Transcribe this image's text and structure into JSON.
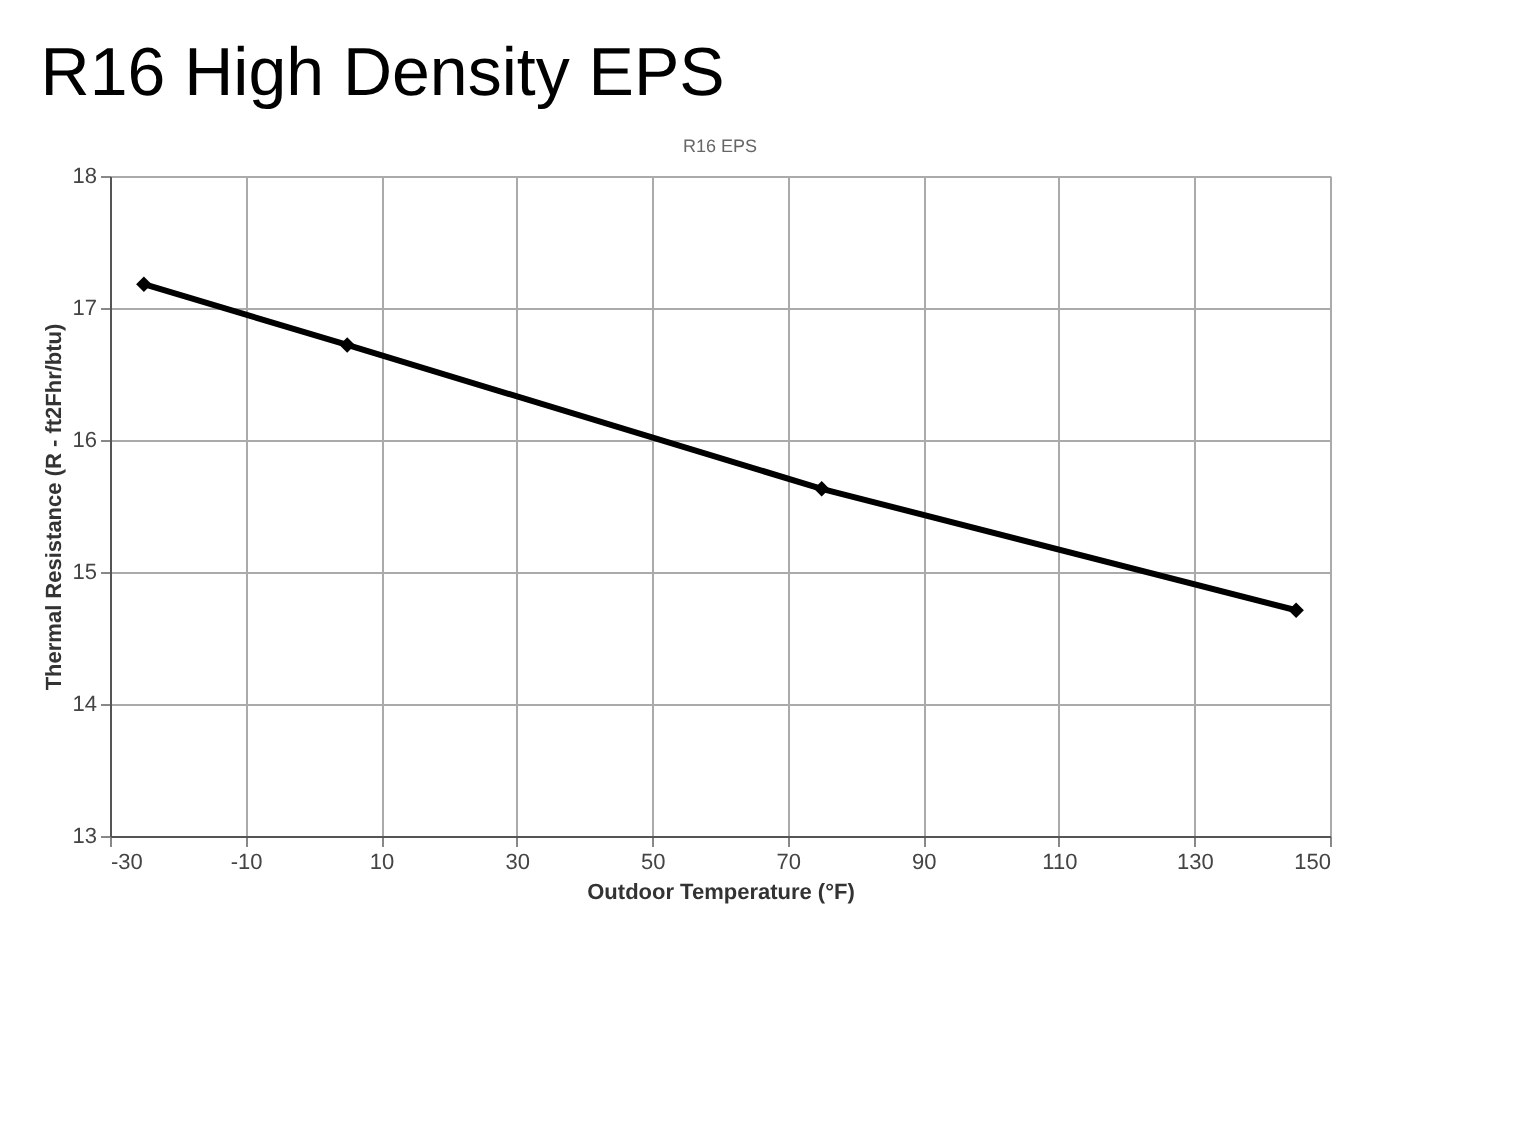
{
  "chart_data": {
    "type": "line",
    "title": "R16 High Density EPS",
    "subtitle": "R16 EPS",
    "xlabel": "Outdoor Temperature (°F)",
    "ylabel": "Thermal Resistance (R - ft2Fhr/btu)",
    "x": [
      -25,
      5,
      75,
      145
    ],
    "series": [
      {
        "color": "#000000",
        "values": [
          17.18,
          16.72,
          15.63,
          14.71
        ]
      }
    ],
    "xlim": [
      -30,
      150
    ],
    "xticks": [
      -30,
      -10,
      10,
      30,
      50,
      70,
      90,
      110,
      130,
      150
    ],
    "ylim": [
      13,
      18
    ],
    "yticks": [
      13,
      14,
      15,
      16,
      17,
      18
    ],
    "grid": true,
    "marker": "diamond",
    "line_style": "solid"
  }
}
